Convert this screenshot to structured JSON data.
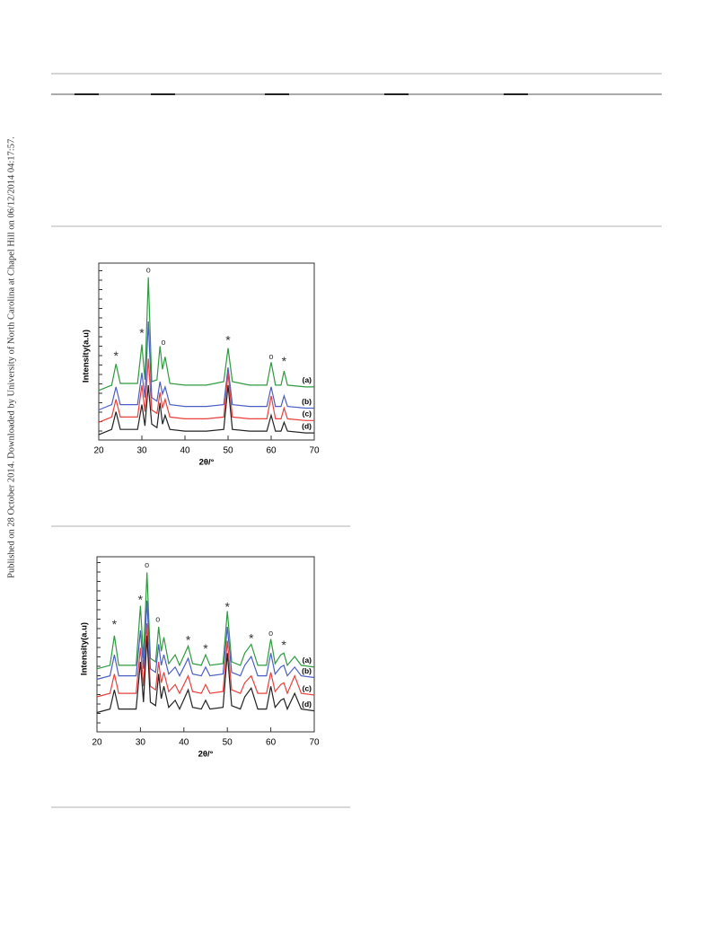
{
  "side_note": "Published on 28 October 2014. Downloaded by University of North Carolina at Chapel Hill on 06/12/2014 04:17:57.",
  "chart_data": [
    {
      "type": "line",
      "xlabel": "2θ/°",
      "ylabel": "Intensity(a.u)",
      "xlim": [
        20,
        70
      ],
      "ylim": [
        0,
        100
      ],
      "xticks": [
        20,
        30,
        40,
        50,
        60,
        70
      ],
      "x": [
        20,
        23,
        24,
        25,
        29,
        30,
        30.7,
        31.5,
        32.3,
        33.5,
        34.2,
        34.8,
        35.4,
        36.5,
        40,
        45,
        49,
        50,
        51,
        55,
        59,
        60,
        61,
        62.3,
        63,
        63.8,
        68,
        70
      ],
      "series": [
        {
          "name": "(a)",
          "color": "#2e9a3f",
          "values": [
            28,
            31,
            43,
            32,
            32,
            54,
            34,
            92,
            33,
            34,
            53,
            40,
            47,
            32,
            31,
            31,
            33,
            52,
            33,
            31,
            31,
            44,
            31,
            31,
            39,
            31,
            30,
            30
          ]
        },
        {
          "name": "(b)",
          "color": "#4a5fc4",
          "values": [
            17,
            20,
            30,
            20,
            20,
            38,
            24,
            67,
            24,
            22,
            33,
            26,
            30,
            20,
            19,
            19,
            20,
            41,
            20,
            19,
            19,
            30,
            19,
            19,
            25,
            19,
            18,
            18
          ]
        },
        {
          "name": "(c)",
          "color": "#e8403c",
          "values": [
            10,
            13,
            23,
            13,
            13,
            31,
            16,
            46,
            17,
            15,
            27,
            18,
            23,
            13,
            12,
            12,
            13,
            38,
            13,
            12,
            12,
            25,
            12,
            12,
            18,
            12,
            11,
            11
          ]
        },
        {
          "name": "(d)",
          "color": "#222222",
          "values": [
            3,
            6,
            16,
            6,
            6,
            20,
            8,
            31,
            9,
            7,
            21,
            9,
            14,
            6,
            5,
            5,
            6,
            31,
            6,
            5,
            5,
            14,
            5,
            5,
            10,
            5,
            4,
            4
          ]
        }
      ],
      "annotations": [
        {
          "text": "*",
          "x": 24,
          "y": 47
        },
        {
          "text": "*",
          "x": 30,
          "y": 60
        },
        {
          "text": "o",
          "x": 31.5,
          "y": 96
        },
        {
          "text": "o",
          "x": 35,
          "y": 55
        },
        {
          "text": "*",
          "x": 50,
          "y": 56
        },
        {
          "text": "o",
          "x": 60,
          "y": 47
        },
        {
          "text": "*",
          "x": 63,
          "y": 44
        }
      ]
    },
    {
      "type": "line",
      "xlabel": "2θ/°",
      "ylabel": "Intensity(a.u)",
      "xlim": [
        20,
        70
      ],
      "ylim": [
        0,
        100
      ],
      "xticks": [
        20,
        30,
        40,
        50,
        60,
        70
      ],
      "x": [
        20,
        23,
        24,
        25,
        29,
        30,
        30.7,
        31.5,
        32.3,
        33.5,
        34.2,
        34.8,
        35.4,
        36.5,
        38,
        39,
        41,
        42,
        44,
        45,
        46,
        49,
        50,
        51,
        53,
        54,
        55.5,
        57,
        59,
        60,
        61,
        62.3,
        63,
        63.8,
        65.5,
        67,
        70
      ],
      "series": [
        {
          "name": "(a)",
          "color": "#2e9a3f",
          "values": [
            36,
            38,
            55,
            38,
            38,
            72,
            42,
            91,
            42,
            40,
            60,
            46,
            54,
            39,
            44,
            38,
            49,
            39,
            38,
            44,
            38,
            39,
            69,
            40,
            38,
            45,
            50,
            38,
            38,
            53,
            39,
            44,
            45,
            38,
            43,
            38,
            37
          ]
        },
        {
          "name": "(b)",
          "color": "#4a5fc4",
          "values": [
            30,
            32,
            44,
            32,
            32,
            58,
            36,
            75,
            36,
            34,
            50,
            38,
            44,
            33,
            37,
            32,
            42,
            33,
            32,
            37,
            32,
            33,
            60,
            34,
            32,
            38,
            43,
            32,
            32,
            45,
            33,
            37,
            38,
            32,
            37,
            32,
            31
          ]
        },
        {
          "name": "(c)",
          "color": "#e8403c",
          "values": [
            20,
            22,
            33,
            22,
            22,
            48,
            26,
            62,
            26,
            24,
            40,
            28,
            34,
            23,
            27,
            22,
            32,
            23,
            22,
            27,
            22,
            23,
            52,
            24,
            22,
            28,
            32,
            22,
            22,
            34,
            23,
            27,
            28,
            22,
            32,
            22,
            21
          ]
        },
        {
          "name": "(d)",
          "color": "#222222",
          "values": [
            11,
            13,
            24,
            13,
            13,
            40,
            17,
            55,
            17,
            15,
            33,
            19,
            26,
            14,
            18,
            13,
            24,
            14,
            13,
            18,
            13,
            14,
            45,
            15,
            13,
            20,
            25,
            13,
            13,
            26,
            14,
            18,
            19,
            13,
            22,
            13,
            12
          ]
        }
      ],
      "annotations": [
        {
          "text": "*",
          "x": 24,
          "y": 61
        },
        {
          "text": "*",
          "x": 30,
          "y": 75
        },
        {
          "text": "o",
          "x": 31.5,
          "y": 95
        },
        {
          "text": "o",
          "x": 34,
          "y": 64
        },
        {
          "text": "*",
          "x": 41,
          "y": 52
        },
        {
          "text": "*",
          "x": 45,
          "y": 47
        },
        {
          "text": "*",
          "x": 50,
          "y": 71
        },
        {
          "text": "*",
          "x": 55.5,
          "y": 53
        },
        {
          "text": "o",
          "x": 60,
          "y": 56
        },
        {
          "text": "*",
          "x": 63,
          "y": 49
        }
      ]
    }
  ]
}
